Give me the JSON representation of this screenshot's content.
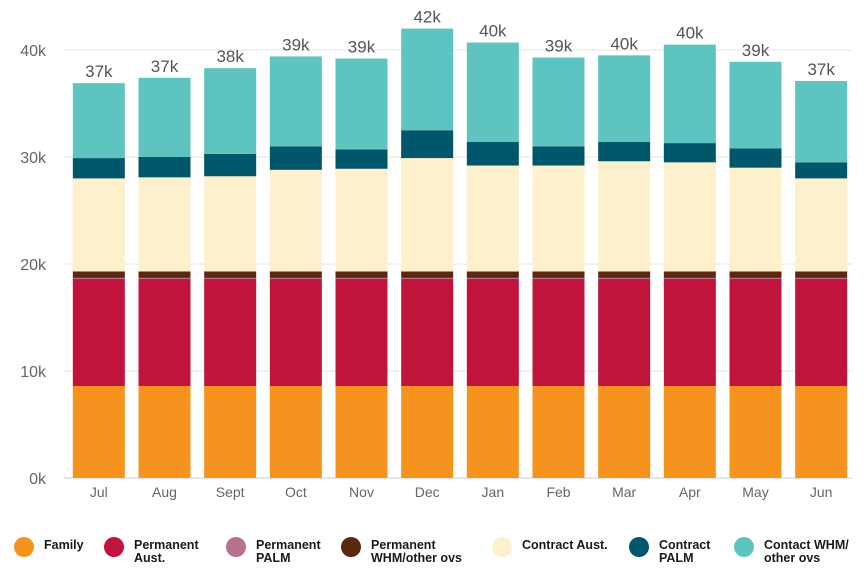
{
  "chart_data": {
    "type": "bar",
    "stacked": true,
    "categories": [
      "Jul",
      "Aug",
      "Sept",
      "Oct",
      "Nov",
      "Dec",
      "Jan",
      "Feb",
      "Mar",
      "Apr",
      "May",
      "Jun"
    ],
    "yticks": [
      "0k",
      "10k",
      "20k",
      "30k",
      "40k"
    ],
    "ylim": [
      0,
      42000
    ],
    "totals": [
      "37k",
      "37k",
      "38k",
      "39k",
      "39k",
      "42k",
      "40k",
      "39k",
      "40k",
      "40k",
      "39k",
      "37k"
    ],
    "legend_position": "bottom",
    "series": [
      {
        "name": "Family",
        "color": "#F5931E",
        "values": [
          8600,
          8600,
          8600,
          8600,
          8600,
          8600,
          8600,
          8600,
          8600,
          8600,
          8600,
          8600
        ]
      },
      {
        "name": "Permanent\nAust.",
        "color": "#C0143C",
        "values": [
          10000,
          10000,
          10000,
          10000,
          10000,
          10000,
          10000,
          10000,
          10000,
          10000,
          10000,
          10000
        ]
      },
      {
        "name": "Permanent\nPALM",
        "color": "#B5718E",
        "values": [
          100,
          100,
          100,
          100,
          100,
          100,
          100,
          100,
          100,
          100,
          100,
          100
        ]
      },
      {
        "name": "Permanent\nWHM/other ovs",
        "color": "#5A2710",
        "values": [
          600,
          600,
          600,
          600,
          600,
          600,
          600,
          600,
          600,
          600,
          600,
          600
        ]
      },
      {
        "name": "Contract Aust.",
        "color": "#FDF0CC",
        "values": [
          8700,
          8800,
          8900,
          9500,
          9600,
          10600,
          9900,
          9900,
          10300,
          10200,
          9700,
          8700
        ]
      },
      {
        "name": "Contract\nPALM",
        "color": "#00576B",
        "values": [
          1900,
          1900,
          2100,
          2200,
          1800,
          2600,
          2200,
          1800,
          1800,
          1800,
          1800,
          1500
        ]
      },
      {
        "name": "Contact WHM/\nother ovs",
        "color": "#5DC4C0",
        "values": [
          7000,
          7400,
          8000,
          8400,
          8500,
          9500,
          9300,
          8300,
          8100,
          9200,
          8100,
          7600
        ]
      }
    ]
  }
}
